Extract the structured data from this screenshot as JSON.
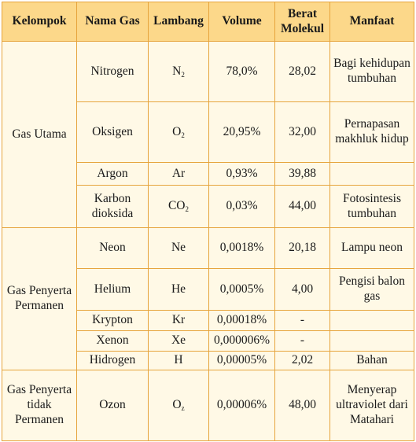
{
  "headers": {
    "kelompok": "Kelompok",
    "nama_gas": "Nama Gas",
    "lambang": "Lambang",
    "volume": "Volume",
    "berat_molekul": "Berat Molekul",
    "manfaat": "Manfaat"
  },
  "groups": {
    "utama": "Gas Utama",
    "penyerta_permanen": "Gas Penyerta Permanen",
    "penyerta_tidak_permanen": "Gas Penyerta tidak Permanen"
  },
  "rows": [
    {
      "nama": "Nitrogen",
      "lambang_base": "N",
      "lambang_sub": "2",
      "volume": "78,0%",
      "berat": "28,02",
      "manfaat": "Bagi kehidupan tumbuhan"
    },
    {
      "nama": "Oksigen",
      "lambang_base": "O",
      "lambang_sub": "2",
      "volume": "20,95%",
      "berat": "32,00",
      "manfaat": "Pernapasan makhluk hidup"
    },
    {
      "nama": "Argon",
      "lambang_base": "Ar",
      "lambang_sub": "",
      "volume": "0,93%",
      "berat": "39,88",
      "manfaat": ""
    },
    {
      "nama": "Karbon dioksida",
      "lambang_base": "CO",
      "lambang_sub": "2",
      "volume": "0,03%",
      "berat": "44,00",
      "manfaat": "Fotosintesis tumbuhan"
    },
    {
      "nama": "Neon",
      "lambang_base": "Ne",
      "lambang_sub": "",
      "volume": "0,0018%",
      "berat": "20,18",
      "manfaat": "Lampu neon"
    },
    {
      "nama": "Helium",
      "lambang_base": "He",
      "lambang_sub": "",
      "volume": "0,0005%",
      "berat": "4,00",
      "manfaat": "Pengisi balon gas"
    },
    {
      "nama": "Krypton",
      "lambang_base": "Kr",
      "lambang_sub": "",
      "volume": "0,00018%",
      "berat": "-",
      "manfaat": ""
    },
    {
      "nama": "Xenon",
      "lambang_base": "Xe",
      "lambang_sub": "",
      "volume": "0,000006%",
      "berat": "-",
      "manfaat": ""
    },
    {
      "nama": "Hidrogen",
      "lambang_base": "H",
      "lambang_sub": "",
      "volume": "0,00005%",
      "berat": "2,02",
      "manfaat": "Bahan"
    },
    {
      "nama": "Ozon",
      "lambang_base": "O",
      "lambang_sub": "z",
      "volume": "0,00006%",
      "berat": "48,00",
      "manfaat": "Menyerap ultraviolet dari Matahari"
    }
  ],
  "colors": {
    "header_bg": "#fcd88a",
    "body_bg": "#fff9e6",
    "border": "#e6a43c"
  }
}
